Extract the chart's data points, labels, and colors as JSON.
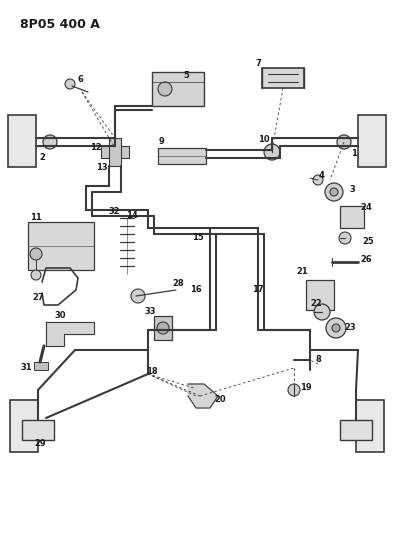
{
  "title": "8P05 400 A",
  "bg_color": "#ffffff",
  "lc": "#3a3a3a",
  "tc": "#1a1a1a",
  "fig_width": 3.94,
  "fig_height": 5.33,
  "dpi": 100
}
